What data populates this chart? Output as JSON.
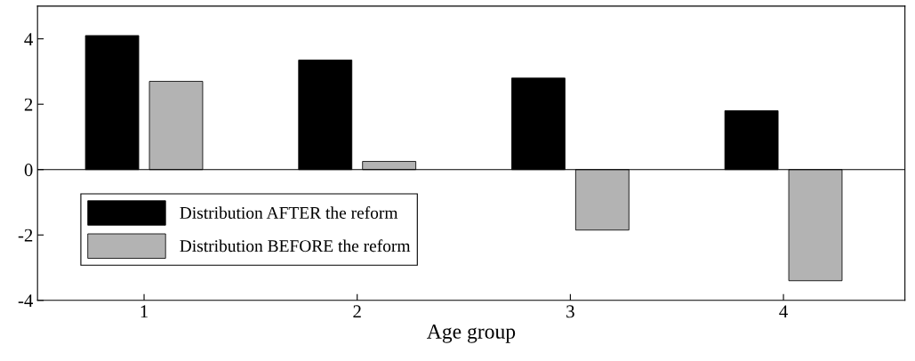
{
  "chart_data": {
    "type": "bar",
    "xlabel": "Age group",
    "categories": [
      "1",
      "2",
      "3",
      "4"
    ],
    "series": [
      {
        "name": "Distribution AFTER the reform",
        "color": "#000000",
        "values": [
          4.1,
          3.35,
          2.8,
          1.8
        ]
      },
      {
        "name": "Distribution BEFORE the reform",
        "color": "#b3b3b3",
        "values": [
          2.7,
          0.25,
          -1.85,
          -3.4
        ]
      }
    ],
    "ylim": [
      -4,
      5
    ],
    "yticks": [
      -4,
      -2,
      0,
      2,
      4
    ],
    "grid": false,
    "ref_lines": [
      {
        "axis": "y",
        "value": 0,
        "color": "#000000"
      }
    ],
    "legend": "lower left"
  }
}
